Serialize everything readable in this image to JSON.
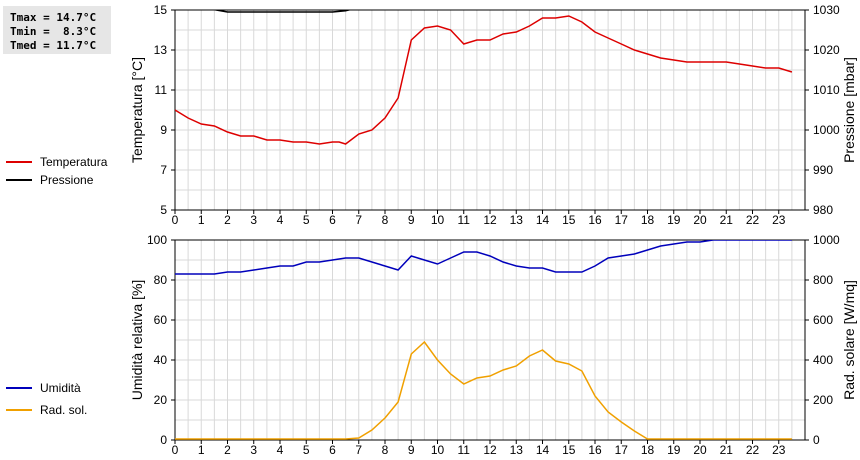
{
  "stats": {
    "tmax": "Tmax = 14.7°C",
    "tmin": "Tmin =  8.3°C",
    "tmed": "Tmed = 11.7°C"
  },
  "legend_top": [
    {
      "label": "Temperatura",
      "color": "#dd0000"
    },
    {
      "label": "Pressione",
      "color": "#000000"
    }
  ],
  "legend_bottom": [
    {
      "label": "Umidità",
      "color": "#0000bb"
    },
    {
      "label": "Rad. sol.",
      "color": "#f0a000"
    }
  ],
  "chart_data": [
    {
      "type": "line",
      "ylabel": "Temperatura [°C]",
      "y2label": "Pressione [mbar]",
      "xlim": [
        0,
        24
      ],
      "ylim": [
        5,
        15
      ],
      "y2lim": [
        980,
        1030
      ],
      "x_ticks": [
        "0",
        "1",
        "2",
        "3",
        "4",
        "5",
        "6",
        "7",
        "8",
        "9",
        "10",
        "11",
        "12",
        "13",
        "14",
        "15",
        "16",
        "17",
        "18",
        "19",
        "20",
        "21",
        "22",
        "23"
      ],
      "y_ticks": [
        "5",
        "7",
        "9",
        "11",
        "13",
        "15"
      ],
      "y2_ticks": [
        "980",
        "990",
        "1000",
        "1010",
        "1020",
        "1030"
      ],
      "grid": true,
      "series": [
        {
          "name": "Temperatura",
          "axis": "left",
          "color": "#dd0000",
          "x": [
            0,
            0.5,
            1,
            1.5,
            2,
            2.5,
            3,
            3.5,
            4,
            4.5,
            5,
            5.5,
            6,
            6.25,
            6.5,
            7,
            7.5,
            8,
            8.5,
            9,
            9.5,
            10,
            10.5,
            11,
            11.5,
            12,
            12.5,
            13,
            13.5,
            14,
            14.5,
            15,
            15.5,
            16,
            16.5,
            17,
            17.5,
            18,
            18.5,
            19,
            19.5,
            20,
            20.5,
            21,
            21.5,
            22,
            22.5,
            23,
            23.5
          ],
          "values": [
            10.0,
            9.6,
            9.3,
            9.2,
            8.9,
            8.7,
            8.7,
            8.5,
            8.5,
            8.4,
            8.4,
            8.3,
            8.4,
            8.4,
            8.3,
            8.8,
            9.0,
            9.6,
            10.6,
            13.5,
            14.1,
            14.2,
            14.0,
            13.3,
            13.5,
            13.5,
            13.8,
            13.9,
            14.2,
            14.6,
            14.6,
            14.7,
            14.4,
            13.9,
            13.6,
            13.3,
            13.0,
            12.8,
            12.6,
            12.5,
            12.4,
            12.4,
            12.4,
            12.4,
            12.3,
            12.2,
            12.1,
            12.1,
            11.9
          ]
        },
        {
          "name": "Pressione",
          "axis": "right",
          "color": "#000000",
          "x": [
            1.4,
            2.0,
            2.5,
            3,
            4,
            5,
            6,
            6.5,
            6.8
          ],
          "values": [
            1030.2,
            1029.5,
            1029.5,
            1029.5,
            1029.5,
            1029.5,
            1029.5,
            1029.8,
            1030.3
          ]
        }
      ]
    },
    {
      "type": "line",
      "ylabel": "Umidità relativa [%]",
      "y2label": "Rad. solare [W/mq]",
      "xlim": [
        0,
        24
      ],
      "ylim": [
        0,
        100
      ],
      "y2lim": [
        0,
        1000
      ],
      "x_ticks": [
        "0",
        "1",
        "2",
        "3",
        "4",
        "5",
        "6",
        "7",
        "8",
        "9",
        "10",
        "11",
        "12",
        "13",
        "14",
        "15",
        "16",
        "17",
        "18",
        "19",
        "20",
        "21",
        "22",
        "23"
      ],
      "y_ticks": [
        "0",
        "20",
        "40",
        "60",
        "80",
        "100"
      ],
      "y2_ticks": [
        "0",
        "200",
        "400",
        "600",
        "800",
        "1000"
      ],
      "grid": true,
      "series": [
        {
          "name": "Umidità",
          "axis": "left",
          "color": "#0000bb",
          "x": [
            0,
            0.5,
            1,
            1.5,
            2,
            2.5,
            3,
            3.5,
            4,
            4.5,
            5,
            5.5,
            6,
            6.5,
            7,
            7.5,
            8,
            8.5,
            9,
            9.5,
            10,
            10.5,
            11,
            11.5,
            12,
            12.5,
            13,
            13.5,
            14,
            14.5,
            15,
            15.5,
            16,
            16.5,
            17,
            17.5,
            18,
            18.5,
            19,
            19.5,
            20,
            20.5,
            21,
            21.5,
            22,
            22.5,
            23,
            23.5
          ],
          "values": [
            83,
            83,
            83,
            83,
            84,
            84,
            85,
            86,
            87,
            87,
            89,
            89,
            90,
            91,
            91,
            89,
            87,
            85,
            92,
            90,
            88,
            91,
            94,
            94,
            92,
            89,
            87,
            86,
            86,
            84,
            84,
            84,
            87,
            91,
            92,
            93,
            95,
            97,
            98,
            99,
            99,
            100,
            100,
            100,
            100,
            100,
            100,
            100
          ]
        },
        {
          "name": "Rad. sol.",
          "axis": "right",
          "color": "#f0a000",
          "x": [
            0,
            0.5,
            1,
            1.5,
            2,
            2.5,
            3,
            3.5,
            4,
            4.5,
            5,
            5.5,
            6,
            6.5,
            7,
            7.5,
            8,
            8.5,
            9,
            9.5,
            10,
            10.5,
            11,
            11.5,
            12,
            12.5,
            13,
            13.5,
            14,
            14.5,
            15,
            15.5,
            16,
            16.5,
            17,
            17.5,
            18,
            18.5,
            19,
            19.5,
            20,
            20.5,
            21,
            21.5,
            22,
            22.5,
            23,
            23.5
          ],
          "values": [
            5,
            5,
            5,
            5,
            5,
            5,
            5,
            5,
            5,
            5,
            5,
            5,
            5,
            5,
            10,
            50,
            110,
            190,
            430,
            490,
            400,
            330,
            280,
            310,
            320,
            350,
            370,
            420,
            450,
            395,
            380,
            345,
            220,
            140,
            90,
            45,
            5,
            5,
            5,
            5,
            5,
            5,
            5,
            5,
            5,
            5,
            5,
            5
          ]
        }
      ]
    }
  ]
}
